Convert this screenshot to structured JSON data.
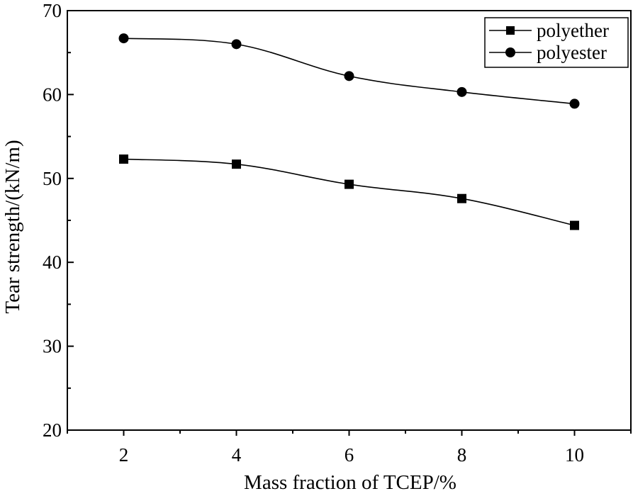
{
  "chart_data": {
    "type": "line",
    "title": "",
    "xlabel": "Mass fraction of TCEP/%",
    "ylabel": "Tear strength/(kN/m)",
    "x": [
      2,
      4,
      6,
      8,
      10
    ],
    "xlim": [
      1,
      11
    ],
    "ylim": [
      20,
      70
    ],
    "x_ticks": [
      2,
      4,
      6,
      8,
      10
    ],
    "x_tick_labels": [
      "2",
      "4",
      "6",
      "8",
      "10"
    ],
    "y_ticks": [
      20,
      30,
      40,
      50,
      60,
      70
    ],
    "y_tick_labels": [
      "20",
      "30",
      "40",
      "50",
      "60",
      "70"
    ],
    "grid": false,
    "legend_position": "top-right",
    "series": [
      {
        "name": "polyether",
        "marker": "square",
        "values": [
          52.3,
          51.7,
          49.3,
          47.6,
          44.4
        ]
      },
      {
        "name": "polyester",
        "marker": "circle",
        "values": [
          66.7,
          66.0,
          62.2,
          60.3,
          58.9
        ]
      }
    ],
    "colors": {
      "line": "#000000",
      "background": "#ffffff"
    }
  }
}
